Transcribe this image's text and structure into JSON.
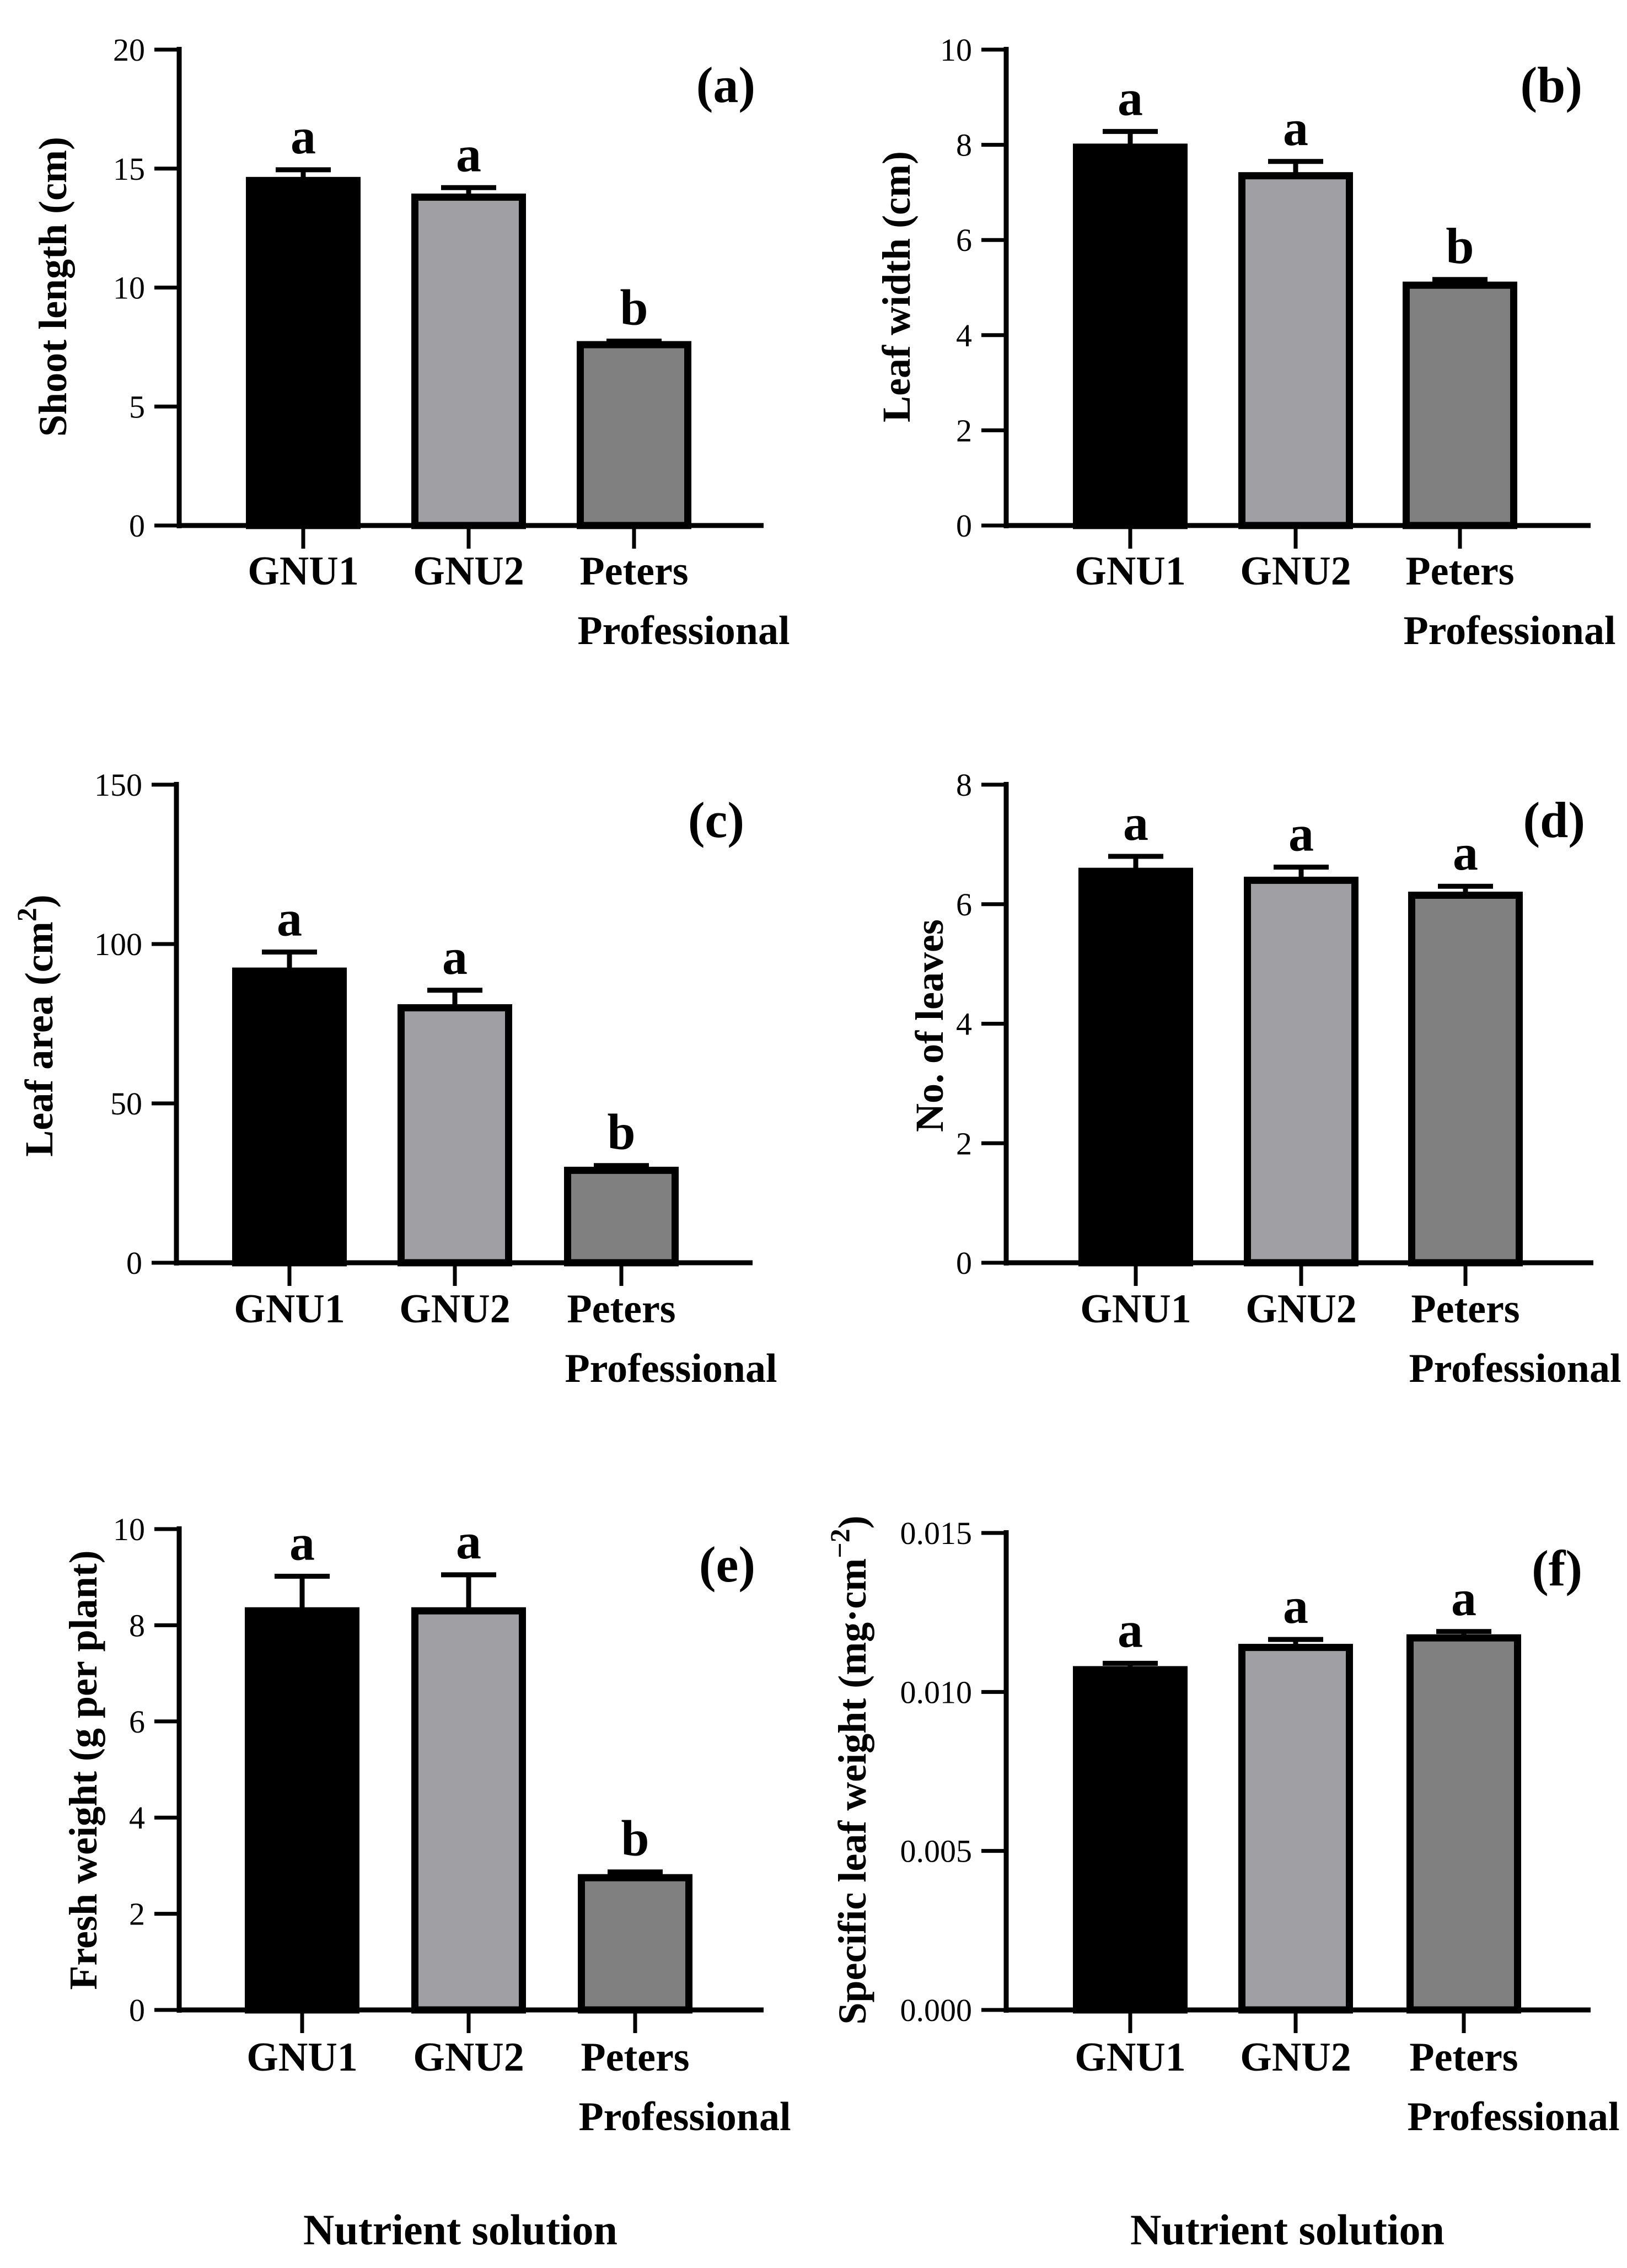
{
  "figure": {
    "categories_line1": [
      "GNU1",
      "GNU2",
      "Peters"
    ],
    "categories_line2": [
      "",
      "",
      "Professional"
    ],
    "xlabel": "Nutrient solution",
    "bar_colors": [
      "#000000",
      "#a0a0a4",
      "#808080"
    ]
  },
  "chart_data": [
    {
      "type": "bar",
      "panel": "(a)",
      "categories": [
        "GNU1",
        "GNU2",
        "Peters Professional"
      ],
      "ylabel": "Shoot length (cm)",
      "ylim": [
        0,
        20
      ],
      "ticks": [
        0,
        5,
        10,
        15,
        20
      ],
      "tick_labels": [
        "0",
        "5",
        "10",
        "15",
        "20"
      ],
      "values": [
        14.5,
        13.8,
        7.6
      ],
      "errors": [
        0.45,
        0.4,
        0.15
      ],
      "letters": [
        "a",
        "a",
        "b"
      ],
      "xlabel": ""
    },
    {
      "type": "bar",
      "panel": "(b)",
      "categories": [
        "GNU1",
        "GNU2",
        "Peters Professional"
      ],
      "ylabel": "Leaf width (cm)",
      "ylim": [
        0,
        10
      ],
      "ticks": [
        0,
        2,
        4,
        6,
        8,
        10
      ],
      "tick_labels": [
        "0",
        "2",
        "4",
        "6",
        "8",
        "10"
      ],
      "values": [
        7.95,
        7.35,
        5.05
      ],
      "errors": [
        0.33,
        0.3,
        0.12
      ],
      "letters": [
        "a",
        "a",
        "b"
      ],
      "xlabel": ""
    },
    {
      "type": "bar",
      "panel": "(c)",
      "categories": [
        "GNU1",
        "GNU2",
        "Peters Professional"
      ],
      "ylabel": "Leaf area (cm",
      "ylabel_sup": "2",
      "ylabel_end": ")",
      "ylim": [
        0,
        150
      ],
      "ticks": [
        0,
        50,
        100,
        150
      ],
      "tick_labels": [
        "0",
        "50",
        "100",
        "150"
      ],
      "values": [
        91.5,
        80,
        29
      ],
      "errors": [
        6,
        5.5,
        1.5
      ],
      "letters": [
        "a",
        "a",
        "b"
      ],
      "xlabel": ""
    },
    {
      "type": "bar",
      "panel": "(d)",
      "categories": [
        "GNU1",
        "GNU2",
        "Peters Professional"
      ],
      "ylabel": "No. of leaves",
      "ylim": [
        0,
        8
      ],
      "ticks": [
        0,
        2,
        4,
        6,
        8
      ],
      "tick_labels": [
        "0",
        "2",
        "4",
        "6",
        "8"
      ],
      "values": [
        6.55,
        6.4,
        6.15
      ],
      "errors": [
        0.25,
        0.22,
        0.15
      ],
      "letters": [
        "a",
        "a",
        "a"
      ],
      "xlabel": ""
    },
    {
      "type": "bar",
      "panel": "(e)",
      "categories": [
        "GNU1",
        "GNU2",
        "Peters Professional"
      ],
      "ylabel": "Fresh weight (g per plant)",
      "ylim": [
        0,
        10
      ],
      "ticks": [
        0,
        2,
        4,
        6,
        8,
        10
      ],
      "tick_labels": [
        "0",
        "2",
        "4",
        "6",
        "8",
        "10"
      ],
      "values": [
        8.3,
        8.3,
        2.75
      ],
      "errors": [
        0.72,
        0.75,
        0.12
      ],
      "letters": [
        "a",
        "a",
        "b"
      ],
      "xlabel": "Nutrient solution"
    },
    {
      "type": "bar",
      "panel": "(f)",
      "categories": [
        "GNU1",
        "GNU2",
        "Peters Professional"
      ],
      "ylabel": "Specific leaf weight (mg·cm",
      "ylabel_sup": "−2",
      "ylabel_end": ")",
      "ylim": [
        0,
        0.015
      ],
      "ticks": [
        0,
        0.005,
        0.01,
        0.015
      ],
      "tick_labels": [
        "0.000",
        "0.005",
        "0.010",
        "0.015"
      ],
      "values": [
        0.0107,
        0.0114,
        0.0117
      ],
      "errors": [
        0.0002,
        0.00025,
        0.0002
      ],
      "letters": [
        "a",
        "a",
        "a"
      ],
      "xlabel": "Nutrient solution"
    }
  ]
}
